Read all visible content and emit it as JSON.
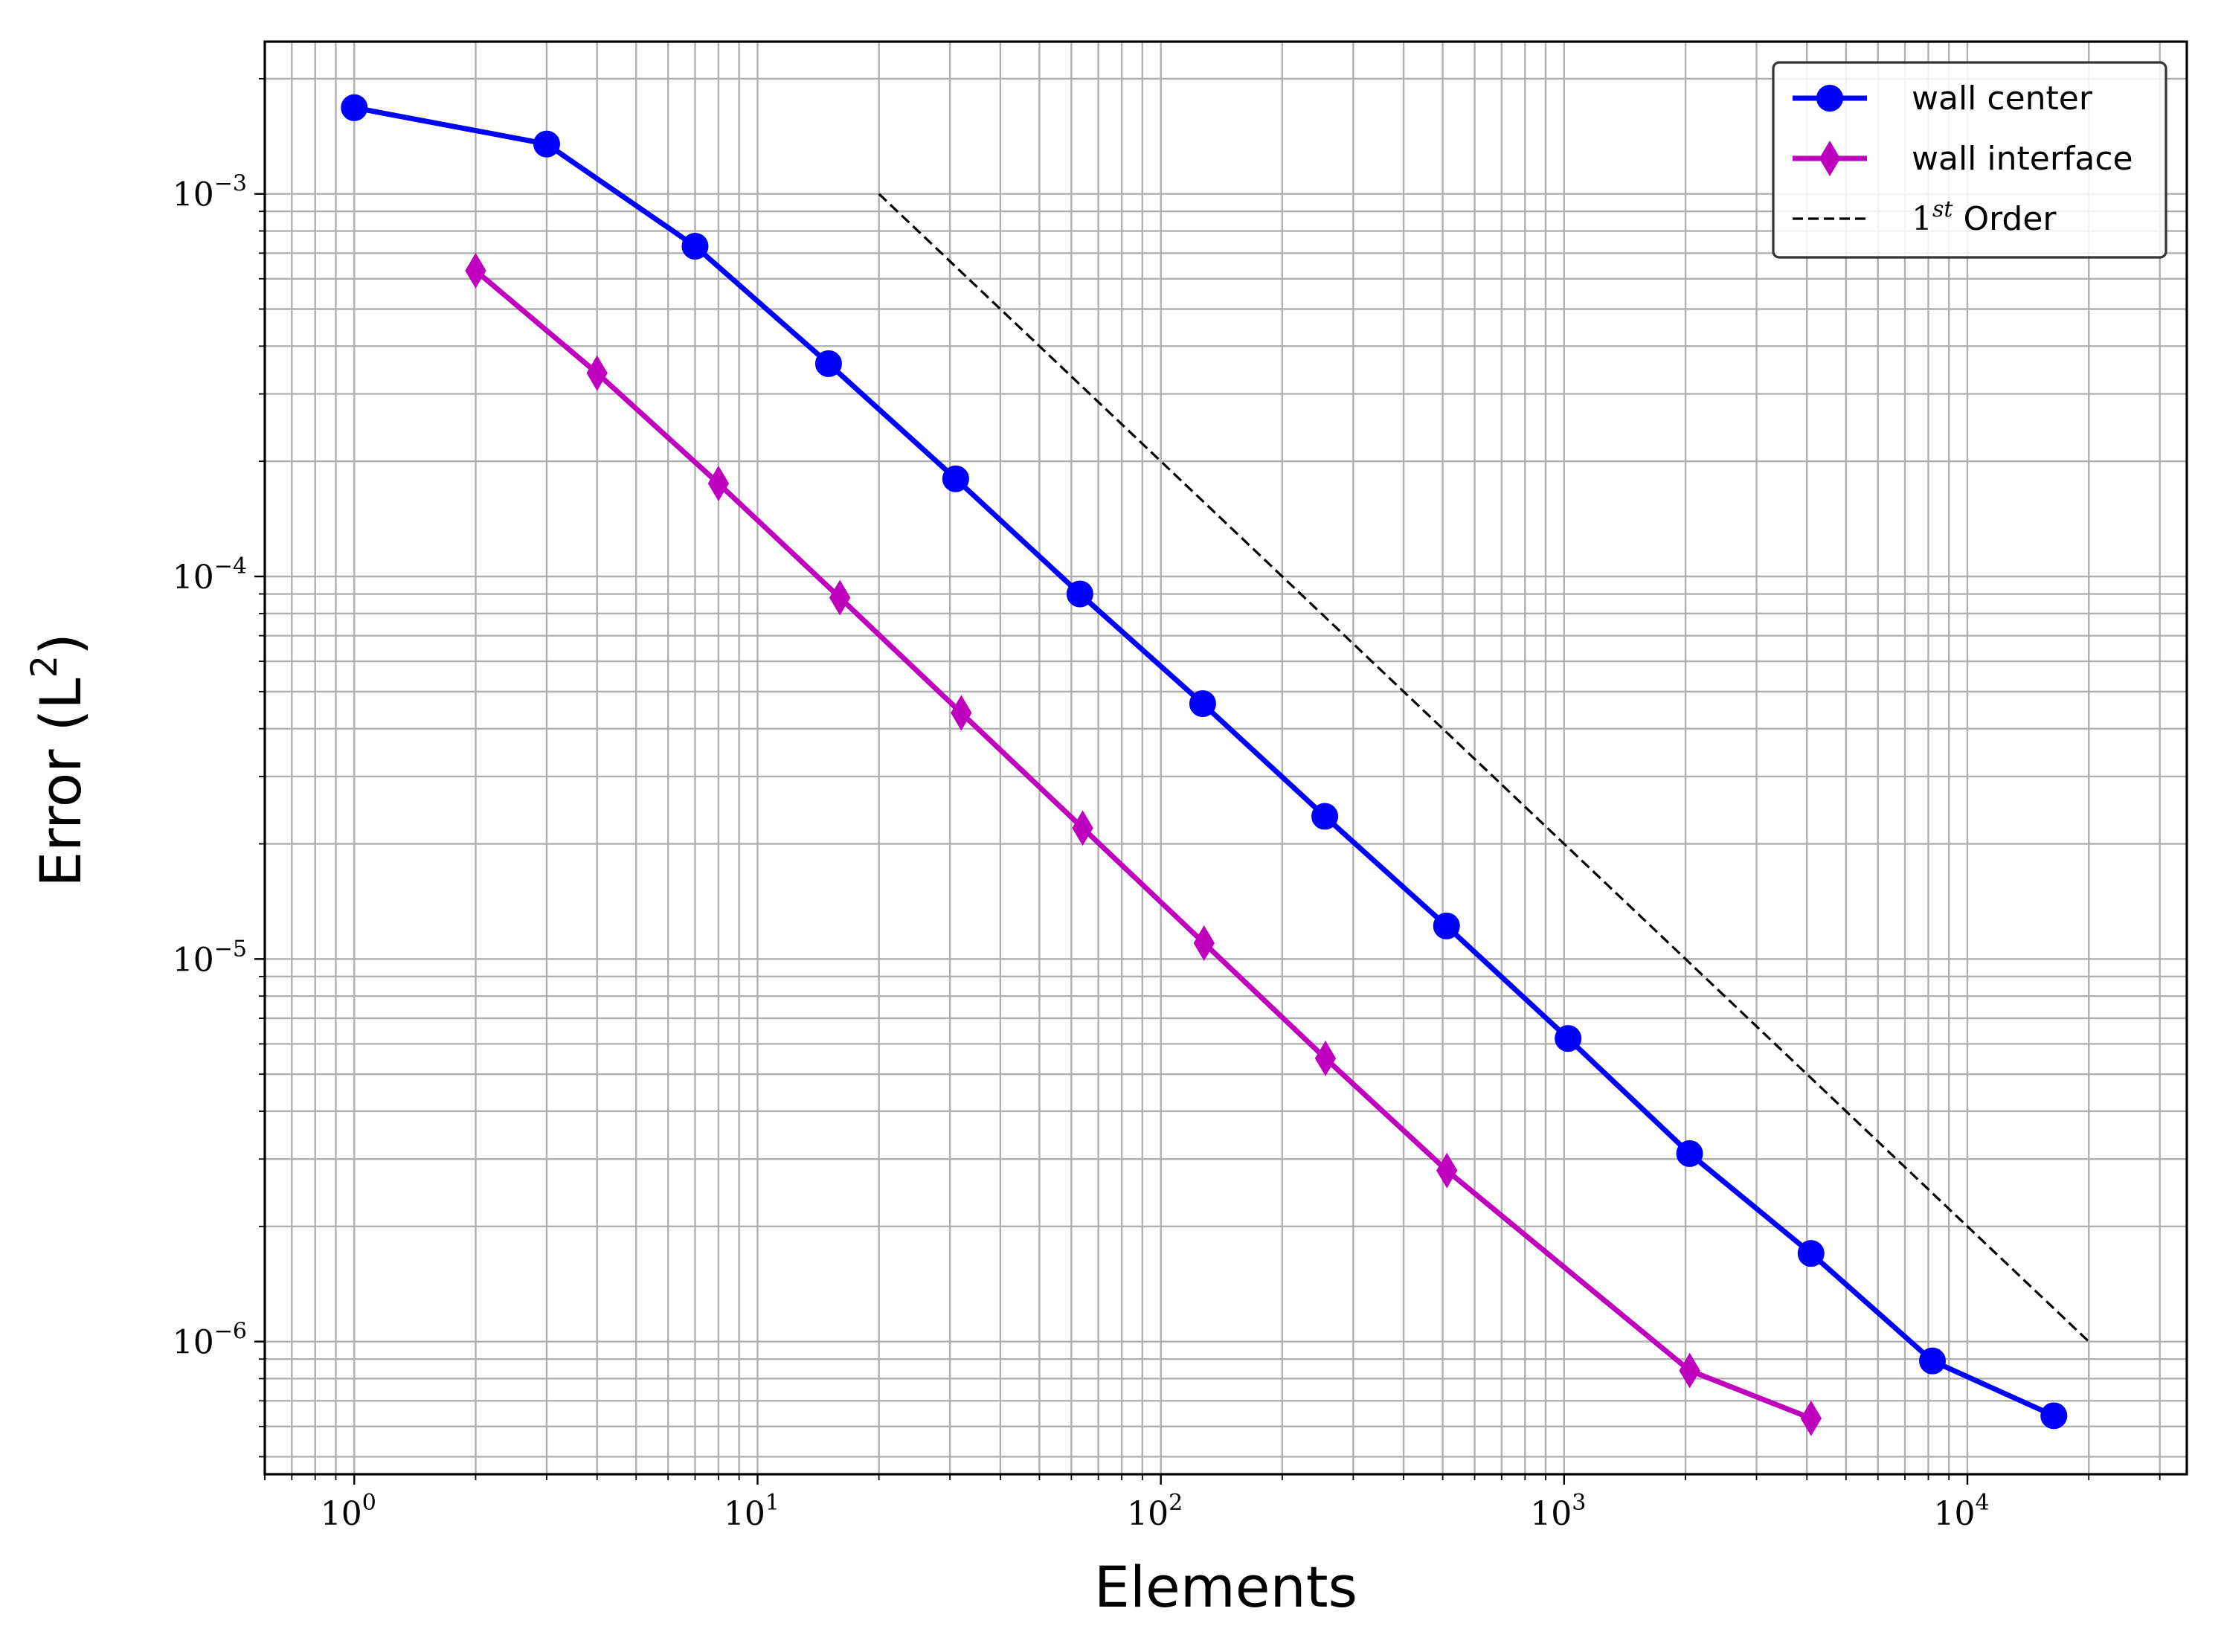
{
  "chart_data": {
    "type": "line",
    "xscale": "log",
    "yscale": "log",
    "xlabel": "Elements",
    "ylabel_base": "Error (L",
    "ylabel_sup": "2",
    "ylabel_close": ")",
    "xlim": [
      0.6,
      35000
    ],
    "ylim": [
      4.5e-07,
      0.0025
    ],
    "grid": "major and minor",
    "legend_placement": "top-right",
    "x_ticks": [
      {
        "value": 1,
        "base": "10",
        "exp": "0"
      },
      {
        "value": 10,
        "base": "10",
        "exp": "1"
      },
      {
        "value": 100,
        "base": "10",
        "exp": "2"
      },
      {
        "value": 1000,
        "base": "10",
        "exp": "3"
      },
      {
        "value": 10000,
        "base": "10",
        "exp": "4"
      }
    ],
    "y_ticks": [
      {
        "value": 1e-06,
        "base": "10",
        "exp": "−6"
      },
      {
        "value": 1e-05,
        "base": "10",
        "exp": "−5"
      },
      {
        "value": 0.0001,
        "base": "10",
        "exp": "−4"
      },
      {
        "value": 0.001,
        "base": "10",
        "exp": "−3"
      }
    ],
    "series": [
      {
        "name": "wall center",
        "color": "#0000ff",
        "marker": "circle",
        "x": [
          1,
          3,
          7,
          15,
          31,
          63,
          127,
          255,
          511,
          1023,
          2047,
          4095,
          8191,
          16383
        ],
        "y": [
          0.00168,
          0.00135,
          0.00073,
          0.00036,
          0.00018,
          9e-05,
          4.65e-05,
          2.36e-05,
          1.22e-05,
          6.2e-06,
          3.1e-06,
          1.7e-06,
          8.9e-07,
          6.4e-07
        ]
      },
      {
        "name": "wall interface",
        "color": "#bf00bf",
        "marker": "thin-diamond",
        "x": [
          2,
          4,
          8,
          16,
          32,
          64,
          128,
          256,
          512,
          2048,
          4096
        ],
        "y": [
          0.00063,
          0.00034,
          0.000175,
          8.8e-05,
          4.4e-05,
          2.2e-05,
          1.1e-05,
          5.5e-06,
          2.8e-06,
          8.4e-07,
          6.3e-07
        ]
      },
      {
        "name_base": "1",
        "name_sup": "st",
        "name_rest": " Order",
        "color": "#000000",
        "style": "dashed",
        "x": [
          20,
          20000
        ],
        "y": [
          0.001,
          1e-06
        ]
      }
    ]
  }
}
